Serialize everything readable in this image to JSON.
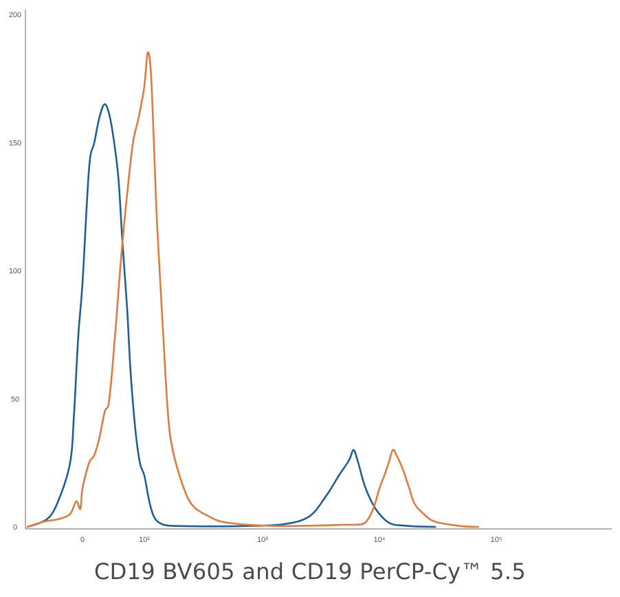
{
  "chart_data": {
    "type": "line",
    "title": "",
    "xlabel": "CD19 BV605 and CD19 PerCP-Cy™ 5.5",
    "ylabel": "",
    "x_scale": "biexponential",
    "ylim": [
      0,
      200
    ],
    "yticks": [
      0,
      50,
      100,
      150,
      200
    ],
    "xticks": [
      {
        "value": 0,
        "label": "0"
      },
      {
        "value": 100,
        "label": "10²"
      },
      {
        "value": 1000,
        "label": "10³"
      },
      {
        "value": 10000,
        "label": "10⁴"
      },
      {
        "value": 100000,
        "label": "10⁵"
      }
    ],
    "grid": false,
    "legend": "none",
    "series": [
      {
        "color": "#1f5f95",
        "x": [
          -150,
          -90,
          -60,
          -30,
          -20,
          -10,
          0,
          10,
          18,
          26,
          34,
          42,
          50,
          56,
          62,
          70,
          76,
          84,
          92,
          100,
          115,
          130,
          150,
          180,
          250,
          400,
          700,
          1500,
          2500,
          3500,
          4500,
          5500,
          6000,
          6500,
          7500,
          9000,
          11000,
          13000,
          16000,
          20000,
          30000
        ],
        "y": [
          0,
          3,
          10,
          25,
          45,
          75,
          95,
          140,
          150,
          160,
          165,
          160,
          148,
          135,
          112,
          85,
          60,
          38,
          25,
          20,
          10,
          4,
          1.5,
          0.5,
          0.3,
          0.2,
          0.3,
          1,
          4,
          12,
          20,
          26,
          30,
          26,
          16,
          8,
          3,
          1,
          0.5,
          0.2,
          0
        ]
      },
      {
        "color": "#e07a3e",
        "x": [
          -150,
          -100,
          -60,
          -30,
          -15,
          -5,
          0,
          10,
          18,
          26,
          34,
          40,
          46,
          52,
          60,
          70,
          80,
          90,
          100,
          110,
          120,
          130,
          140,
          160,
          180,
          200,
          250,
          300,
          400,
          500,
          700,
          1000,
          1500,
          3000,
          5000,
          7000,
          8000,
          9000,
          10000,
          11000,
          12000,
          13000,
          14000,
          16000,
          18000,
          20000,
          24000,
          30000,
          50000,
          70000
        ],
        "y": [
          0,
          2,
          3,
          5,
          10,
          7,
          15,
          25,
          28,
          35,
          45,
          48,
          62,
          80,
          105,
          130,
          150,
          160,
          172,
          185,
          178,
          150,
          120,
          80,
          45,
          30,
          15,
          8,
          4,
          2,
          1,
          0.5,
          0.3,
          0.5,
          0.8,
          1,
          3,
          8,
          15,
          20,
          25,
          30,
          28,
          22,
          15,
          9,
          5,
          2,
          0.3,
          0
        ]
      }
    ]
  }
}
